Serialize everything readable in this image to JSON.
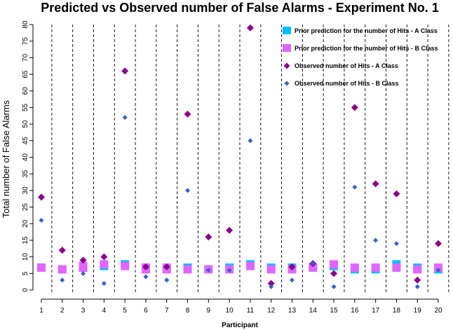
{
  "chart_data": {
    "type": "scatter",
    "title": "Predicted vs Observed number of False Alarms - Experiment No. 1",
    "xlabel": "Participant",
    "ylabel": "Total number of False Alarms",
    "x": [
      1,
      2,
      3,
      4,
      5,
      6,
      7,
      8,
      9,
      10,
      11,
      12,
      13,
      14,
      15,
      16,
      17,
      18,
      19,
      20
    ],
    "xlim": [
      1,
      20
    ],
    "ylim": [
      0,
      80
    ],
    "yticks": [
      0,
      5,
      10,
      15,
      20,
      25,
      30,
      35,
      40,
      45,
      50,
      55,
      60,
      65,
      70,
      75,
      80
    ],
    "xticks": [
      "1",
      "2",
      "3",
      "4",
      "5",
      "6",
      "7",
      "8",
      "9",
      "10",
      "11",
      "12",
      "13",
      "14",
      "15",
      "16",
      "17",
      "18",
      "19",
      "20"
    ],
    "separators": "dashed vertical line between participants",
    "legend_position": "top-right",
    "series": [
      {
        "name": "Prior prediction for the number of Hits - A Class",
        "marker": "bar",
        "color": "#00bfff",
        "values": [
          [
            6,
            8
          ],
          [
            5,
            7
          ],
          [
            5.5,
            7.5
          ],
          [
            6,
            8
          ],
          [
            7,
            9
          ],
          [
            6,
            8
          ],
          [
            5.5,
            7.5
          ],
          [
            6,
            8
          ],
          [
            5.5,
            7.5
          ],
          [
            6,
            8
          ],
          [
            7,
            9
          ],
          [
            6,
            8
          ],
          [
            6,
            8
          ],
          [
            6,
            8
          ],
          [
            6,
            8
          ],
          [
            5,
            7
          ],
          [
            5,
            7
          ],
          [
            7,
            9
          ],
          [
            6,
            8
          ],
          [
            5,
            7
          ]
        ]
      },
      {
        "name": "Prior prediction for the number of Hits - B Class",
        "marker": "bar",
        "color": "#e066ff",
        "values": [
          [
            5.5,
            8
          ],
          [
            5,
            7.5
          ],
          [
            5.5,
            8.5
          ],
          [
            6.5,
            9
          ],
          [
            6,
            8.5
          ],
          [
            5,
            8
          ],
          [
            5,
            8
          ],
          [
            5,
            7.5
          ],
          [
            5,
            7.5
          ],
          [
            5,
            7.5
          ],
          [
            6,
            8.5
          ],
          [
            5,
            7.5
          ],
          [
            5,
            7.5
          ],
          [
            5.5,
            8
          ],
          [
            6.5,
            9
          ],
          [
            5.5,
            8
          ],
          [
            5.5,
            8
          ],
          [
            5.5,
            8
          ],
          [
            5,
            7.5
          ],
          [
            5.5,
            8
          ]
        ]
      },
      {
        "name": "Observed number of Hits - A Class",
        "marker": "diamond",
        "color": "#8b008b",
        "values": [
          28,
          12,
          9,
          10,
          66,
          7,
          7,
          53,
          16,
          18,
          79,
          2,
          7,
          8,
          5,
          55,
          32,
          29,
          3,
          14
        ]
      },
      {
        "name": "Observed number of Hits - B Class",
        "marker": "diamond-small",
        "color": "#3a5fcd",
        "values": [
          21,
          3,
          5,
          2,
          52,
          4,
          3,
          30,
          6,
          6,
          45,
          1,
          3,
          8,
          1,
          31,
          15,
          14,
          1,
          6
        ]
      }
    ]
  }
}
